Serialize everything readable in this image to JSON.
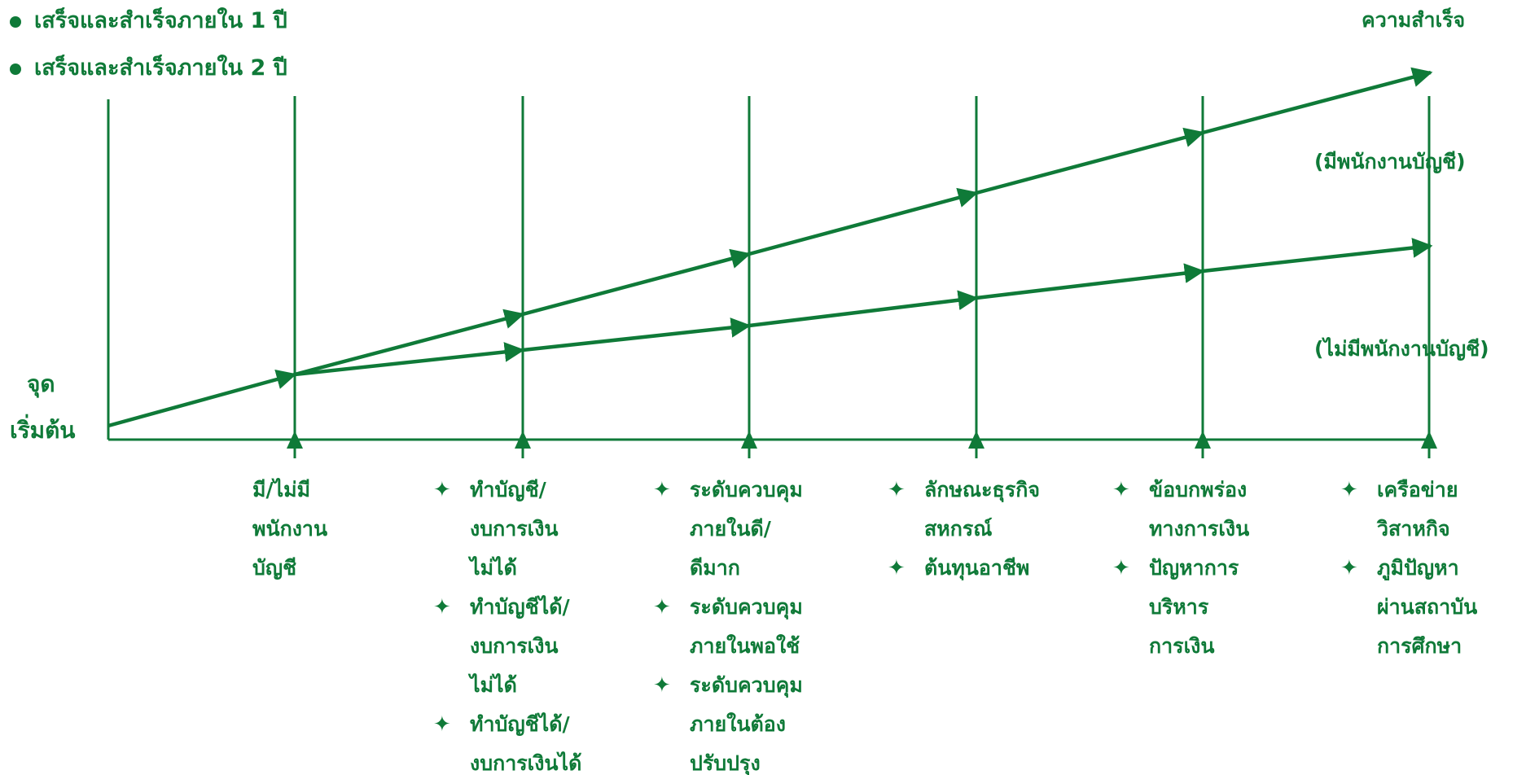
{
  "legend": [
    {
      "label": "เสร็จและสำเร็จภายใน  1  ปี"
    },
    {
      "label": "เสร็จและสำเร็จภายใน  2  ปี"
    }
  ],
  "labels": {
    "success": "ความสำเร็จ",
    "with_accountant": "(มีพนักงานบัญชี)",
    "without_accountant": "(ไม่มีพนักงานบัญชี)",
    "start_line1": "จุด",
    "start_line2": "เริ่มต้น"
  },
  "bullet_symbol": "✦",
  "columns": [
    {
      "lines": [
        "มี/ไม่มี",
        "พนักงาน",
        "บัญชี"
      ]
    },
    {
      "items": [
        {
          "lines": [
            "ทำบัญชี/",
            "งบการเงิน",
            "ไม่ได้"
          ]
        },
        {
          "lines": [
            "ทำบัญชีได้/",
            "งบการเงิน",
            "ไม่ได้"
          ]
        },
        {
          "lines": [
            "ทำบัญชีได้/",
            "งบการเงินได้"
          ]
        }
      ]
    },
    {
      "items": [
        {
          "lines": [
            "ระดับควบคุม",
            "ภายในดี/",
            "ดีมาก"
          ]
        },
        {
          "lines": [
            "ระดับควบคุม",
            "ภายในพอใช้"
          ]
        },
        {
          "lines": [
            "ระดับควบคุม",
            "ภายในต้อง",
            "ปรับปรุง"
          ]
        }
      ]
    },
    {
      "items": [
        {
          "lines": [
            "ลักษณะธุรกิจ",
            "สหกรณ์"
          ]
        },
        {
          "lines": [
            "ต้นทุนอาชีพ"
          ]
        }
      ]
    },
    {
      "items": [
        {
          "lines": [
            "ข้อบกพร่อง",
            "ทางการเงิน"
          ]
        },
        {
          "lines": [
            "ปัญหาการ",
            "บริหาร",
            "การเงิน"
          ]
        }
      ]
    },
    {
      "items": [
        {
          "lines": [
            "เครือข่าย",
            "วิสาหกิจ"
          ]
        },
        {
          "lines": [
            "ภูมิปัญหา",
            "ผ่านสถาบัน",
            "การศึกษา"
          ]
        }
      ]
    }
  ],
  "colors": {
    "primary": "#0f7a38",
    "background": "#ffffff"
  },
  "icon_names": [
    "bullet-dot-icon",
    "four-point-star-icon",
    "arrow-up-icon",
    "arrow-right-icon"
  ]
}
